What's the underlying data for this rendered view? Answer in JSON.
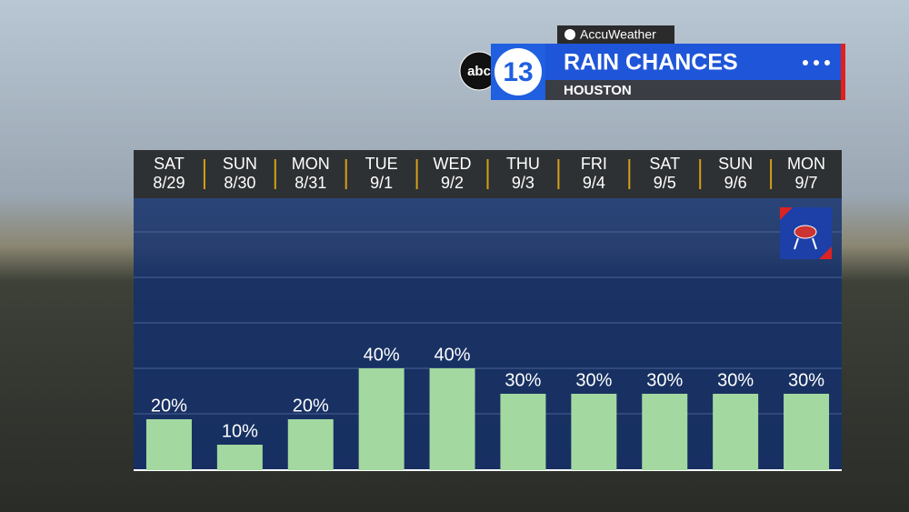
{
  "brand": {
    "network": "abc",
    "channel": "13",
    "provider": "AccuWeather"
  },
  "chart_data": {
    "type": "bar",
    "title": "RAIN CHANCES",
    "subtitle": "HOUSTON",
    "categories": [
      "SAT",
      "SUN",
      "MON",
      "TUE",
      "WED",
      "THU",
      "FRI",
      "SAT",
      "SUN",
      "MON"
    ],
    "dates": [
      "8/29",
      "8/30",
      "8/31",
      "9/1",
      "9/2",
      "9/3",
      "9/4",
      "9/5",
      "9/6",
      "9/7"
    ],
    "values": [
      20,
      10,
      20,
      40,
      40,
      30,
      30,
      30,
      30,
      30
    ],
    "value_labels": [
      "20%",
      "10%",
      "20%",
      "40%",
      "40%",
      "30%",
      "30%",
      "30%",
      "30%",
      "30%"
    ],
    "color": "#a3d9a0",
    "ylim": [
      0,
      100
    ]
  }
}
